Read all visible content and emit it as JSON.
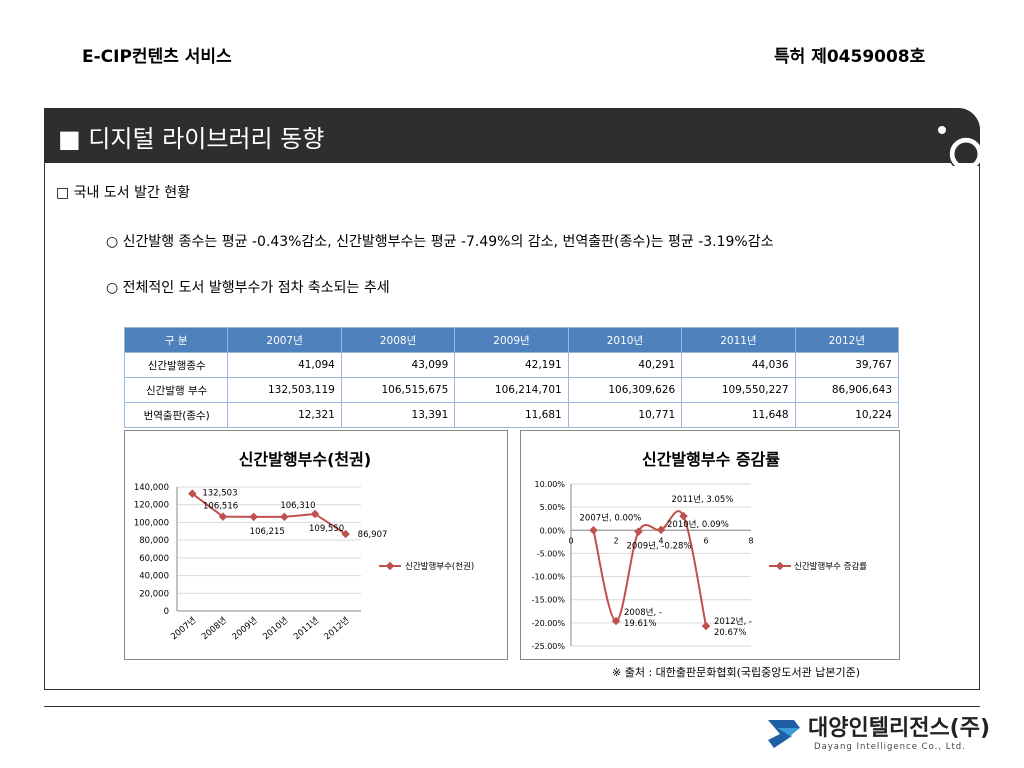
{
  "header": {
    "left": "E-CIP컨텐츠 서비스",
    "right": "특허 제0459008호"
  },
  "panel": {
    "title": "■ 디지털 라이브러리 동향"
  },
  "section": {
    "heading": "□ 국내 도서 발간 현황",
    "bullets": [
      "○ 신간발행 종수는 평균 -0.43%감소, 신간발행부수는 평균 -7.49%의 감소, 번역출판(종수)는 평균 -3.19%감소",
      "○ 전체적인 도서 발행부수가 점차 축소되는 추세"
    ]
  },
  "table": {
    "headers": [
      "구 분",
      "2007년",
      "2008년",
      "2009년",
      "2010년",
      "2011년",
      "2012년"
    ],
    "rows": [
      [
        "신간발행종수",
        "41,094",
        "43,099",
        "42,191",
        "40,291",
        "44,036",
        "39,767"
      ],
      [
        "신간발행 부수",
        "132,503,119",
        "106,515,675",
        "106,214,701",
        "106,309,626",
        "109,550,227",
        "86,906,643"
      ],
      [
        "번역출판(종수)",
        "12,321",
        "13,391",
        "11,681",
        "10,771",
        "11,648",
        "10,224"
      ]
    ]
  },
  "chart_data": [
    {
      "type": "line",
      "title": "신간발행부수(천권)",
      "categories": [
        "2007년",
        "2008년",
        "2009년",
        "2010년",
        "2011년",
        "2012년"
      ],
      "series": [
        {
          "name": "신간발행부수(천권)",
          "values": [
            132503,
            106516,
            106215,
            106310,
            109550,
            86907
          ]
        }
      ],
      "data_labels": [
        "132,503",
        "106,516",
        "106,215",
        "106,310",
        "109,550",
        "86,907"
      ],
      "yticks": [
        "0",
        "20,000",
        "40,000",
        "60,000",
        "80,000",
        "100,000",
        "120,000",
        "140,000"
      ],
      "ylim": [
        0,
        140000
      ],
      "legend": "right",
      "color": "#c0504d"
    },
    {
      "type": "scatter",
      "title": "신간발행부수 증감률",
      "x": [
        1,
        2,
        3,
        4,
        5,
        6
      ],
      "series": [
        {
          "name": "신간발행부수 증감률",
          "values": [
            0.0,
            -19.61,
            -0.28,
            0.09,
            3.05,
            -20.67
          ]
        }
      ],
      "data_labels": [
        "2007년, 0.00%",
        "2008년, -19.61%",
        "2009년, -0.28%",
        "2010년, 0.09%",
        "2011년, 3.05%",
        "2012년, -20.67%"
      ],
      "yticks": [
        "10.00%",
        "5.00%",
        "0.00%",
        "-5.00%",
        "-10.00%",
        "-15.00%",
        "-20.00%",
        "-25.00%"
      ],
      "xticks": [
        "0",
        "2",
        "4",
        "6",
        "8"
      ],
      "ylim": [
        -25,
        10
      ],
      "xlim": [
        0,
        8
      ],
      "legend": "right",
      "color": "#c0504d"
    }
  ],
  "footer": {
    "source": "※ 출처 : 대한출판문화협회(국립중앙도서관 납본기준)"
  },
  "logo": {
    "name_kr": "대양인텔리전스(주)",
    "name_en": "Dayang Intelligence Co., Ltd."
  }
}
